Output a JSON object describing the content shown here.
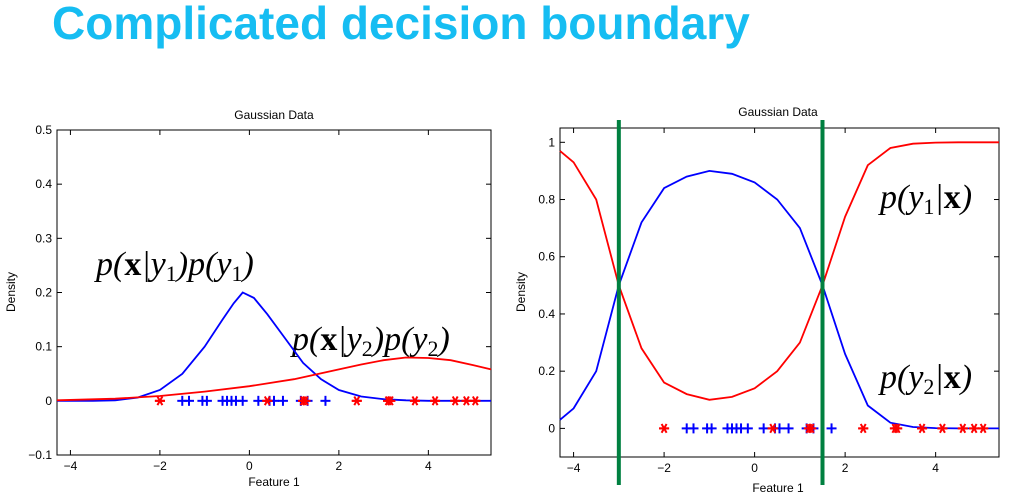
{
  "slide_title": "Complicated decision boundary",
  "chart_data": [
    {
      "type": "line",
      "title": "Gaussian Data",
      "xlabel": "Feature 1",
      "ylabel": "Density",
      "xlim": [
        -4.3,
        5.4
      ],
      "ylim": [
        -0.1,
        0.5
      ],
      "xticks": [
        "-4",
        "-2",
        "0",
        "2",
        "4"
      ],
      "yticks": [
        "-0.1",
        "0",
        "0.1",
        "0.2",
        "0.3",
        "0.4",
        "0.5"
      ],
      "series": [
        {
          "name": "p(x|y1)p(y1)",
          "color": "#0000ff",
          "x": [
            -4.3,
            -3.5,
            -3,
            -2.5,
            -2,
            -1.5,
            -1,
            -0.6,
            -0.35,
            -0.15,
            0.1,
            0.4,
            0.8,
            1.2,
            1.6,
            2,
            2.5,
            3,
            3.5,
            4,
            4.5,
            5,
            5.4
          ],
          "y": [
            0,
            0,
            0.001,
            0.006,
            0.02,
            0.05,
            0.1,
            0.15,
            0.18,
            0.2,
            0.19,
            0.16,
            0.115,
            0.07,
            0.04,
            0.02,
            0.008,
            0.003,
            0.001,
            0,
            0,
            0,
            0
          ]
        },
        {
          "name": "p(x|y2)p(y2)",
          "color": "#ff0000",
          "x": [
            -4.3,
            -3,
            -2,
            -1,
            0,
            1,
            2,
            2.5,
            3,
            3.5,
            4,
            4.5,
            5,
            5.4
          ],
          "y": [
            0.001,
            0.004,
            0.009,
            0.017,
            0.027,
            0.04,
            0.058,
            0.067,
            0.075,
            0.08,
            0.079,
            0.075,
            0.066,
            0.058
          ]
        }
      ],
      "samples_class1": {
        "marker": "+",
        "color": "#0000ff",
        "x": [
          -1.5,
          -1.35,
          -1.05,
          -0.95,
          -0.6,
          -0.5,
          -0.4,
          -0.3,
          -0.15,
          0.2,
          0.45,
          0.55,
          0.75,
          1.15,
          1.3,
          1.7
        ],
        "y": 0
      },
      "samples_class2": {
        "marker": "*",
        "color": "#ff0000",
        "x": [
          -2,
          0.4,
          1.2,
          1.25,
          2.4,
          3.1,
          3.15,
          3.7,
          4.15,
          4.6,
          4.85,
          5.05
        ],
        "y": 0
      },
      "annotations": [
        "p(x|y1)p(y1)",
        "p(x|y2)p(y2)"
      ]
    },
    {
      "type": "line",
      "title": "Gaussian Data",
      "xlabel": "Feature 1",
      "ylabel": "Density",
      "xlim": [
        -4.3,
        5.4
      ],
      "ylim": [
        -0.1,
        1.05
      ],
      "xticks": [
        "-4",
        "-2",
        "0",
        "2",
        "4"
      ],
      "yticks": [
        "0",
        "0.2",
        "0.4",
        "0.6",
        "0.8",
        "1"
      ],
      "series": [
        {
          "name": "p(y1|x)",
          "color": "#0000ff",
          "x": [
            -4.3,
            -4,
            -3.5,
            -3,
            -2.5,
            -2,
            -1.5,
            -1,
            -0.5,
            0,
            0.5,
            1,
            1.5,
            2,
            2.5,
            3,
            3.5,
            4,
            4.5,
            5,
            5.4
          ],
          "y": [
            0.03,
            0.07,
            0.2,
            0.5,
            0.72,
            0.84,
            0.88,
            0.9,
            0.89,
            0.86,
            0.8,
            0.7,
            0.5,
            0.26,
            0.08,
            0.02,
            0.005,
            0.001,
            0,
            0,
            0
          ]
        },
        {
          "name": "p(y2|x)",
          "color": "#ff0000",
          "x": [
            -4.3,
            -4,
            -3.5,
            -3,
            -2.5,
            -2,
            -1.5,
            -1,
            -0.5,
            0,
            0.5,
            1,
            1.5,
            2,
            2.5,
            3,
            3.5,
            4,
            4.5,
            5,
            5.4
          ],
          "y": [
            0.97,
            0.93,
            0.8,
            0.5,
            0.28,
            0.16,
            0.12,
            0.1,
            0.11,
            0.14,
            0.2,
            0.3,
            0.5,
            0.74,
            0.92,
            0.98,
            0.995,
            0.999,
            1,
            1,
            1
          ]
        }
      ],
      "decision_boundaries": {
        "color": "#008040",
        "x": [
          -3,
          1.5
        ]
      },
      "samples_class1": {
        "marker": "+",
        "color": "#0000ff",
        "x": [
          -1.5,
          -1.35,
          -1.05,
          -0.95,
          -0.6,
          -0.5,
          -0.4,
          -0.3,
          -0.15,
          0.2,
          0.45,
          0.55,
          0.75,
          1.15,
          1.3,
          1.7
        ],
        "y": 0
      },
      "samples_class2": {
        "marker": "*",
        "color": "#ff0000",
        "x": [
          -2,
          0.4,
          1.2,
          1.25,
          2.4,
          3.1,
          3.15,
          3.7,
          4.15,
          4.6,
          4.85,
          5.05
        ],
        "y": 0
      },
      "annotations": [
        "p(y1|x)",
        "p(y2|x)"
      ]
    }
  ]
}
